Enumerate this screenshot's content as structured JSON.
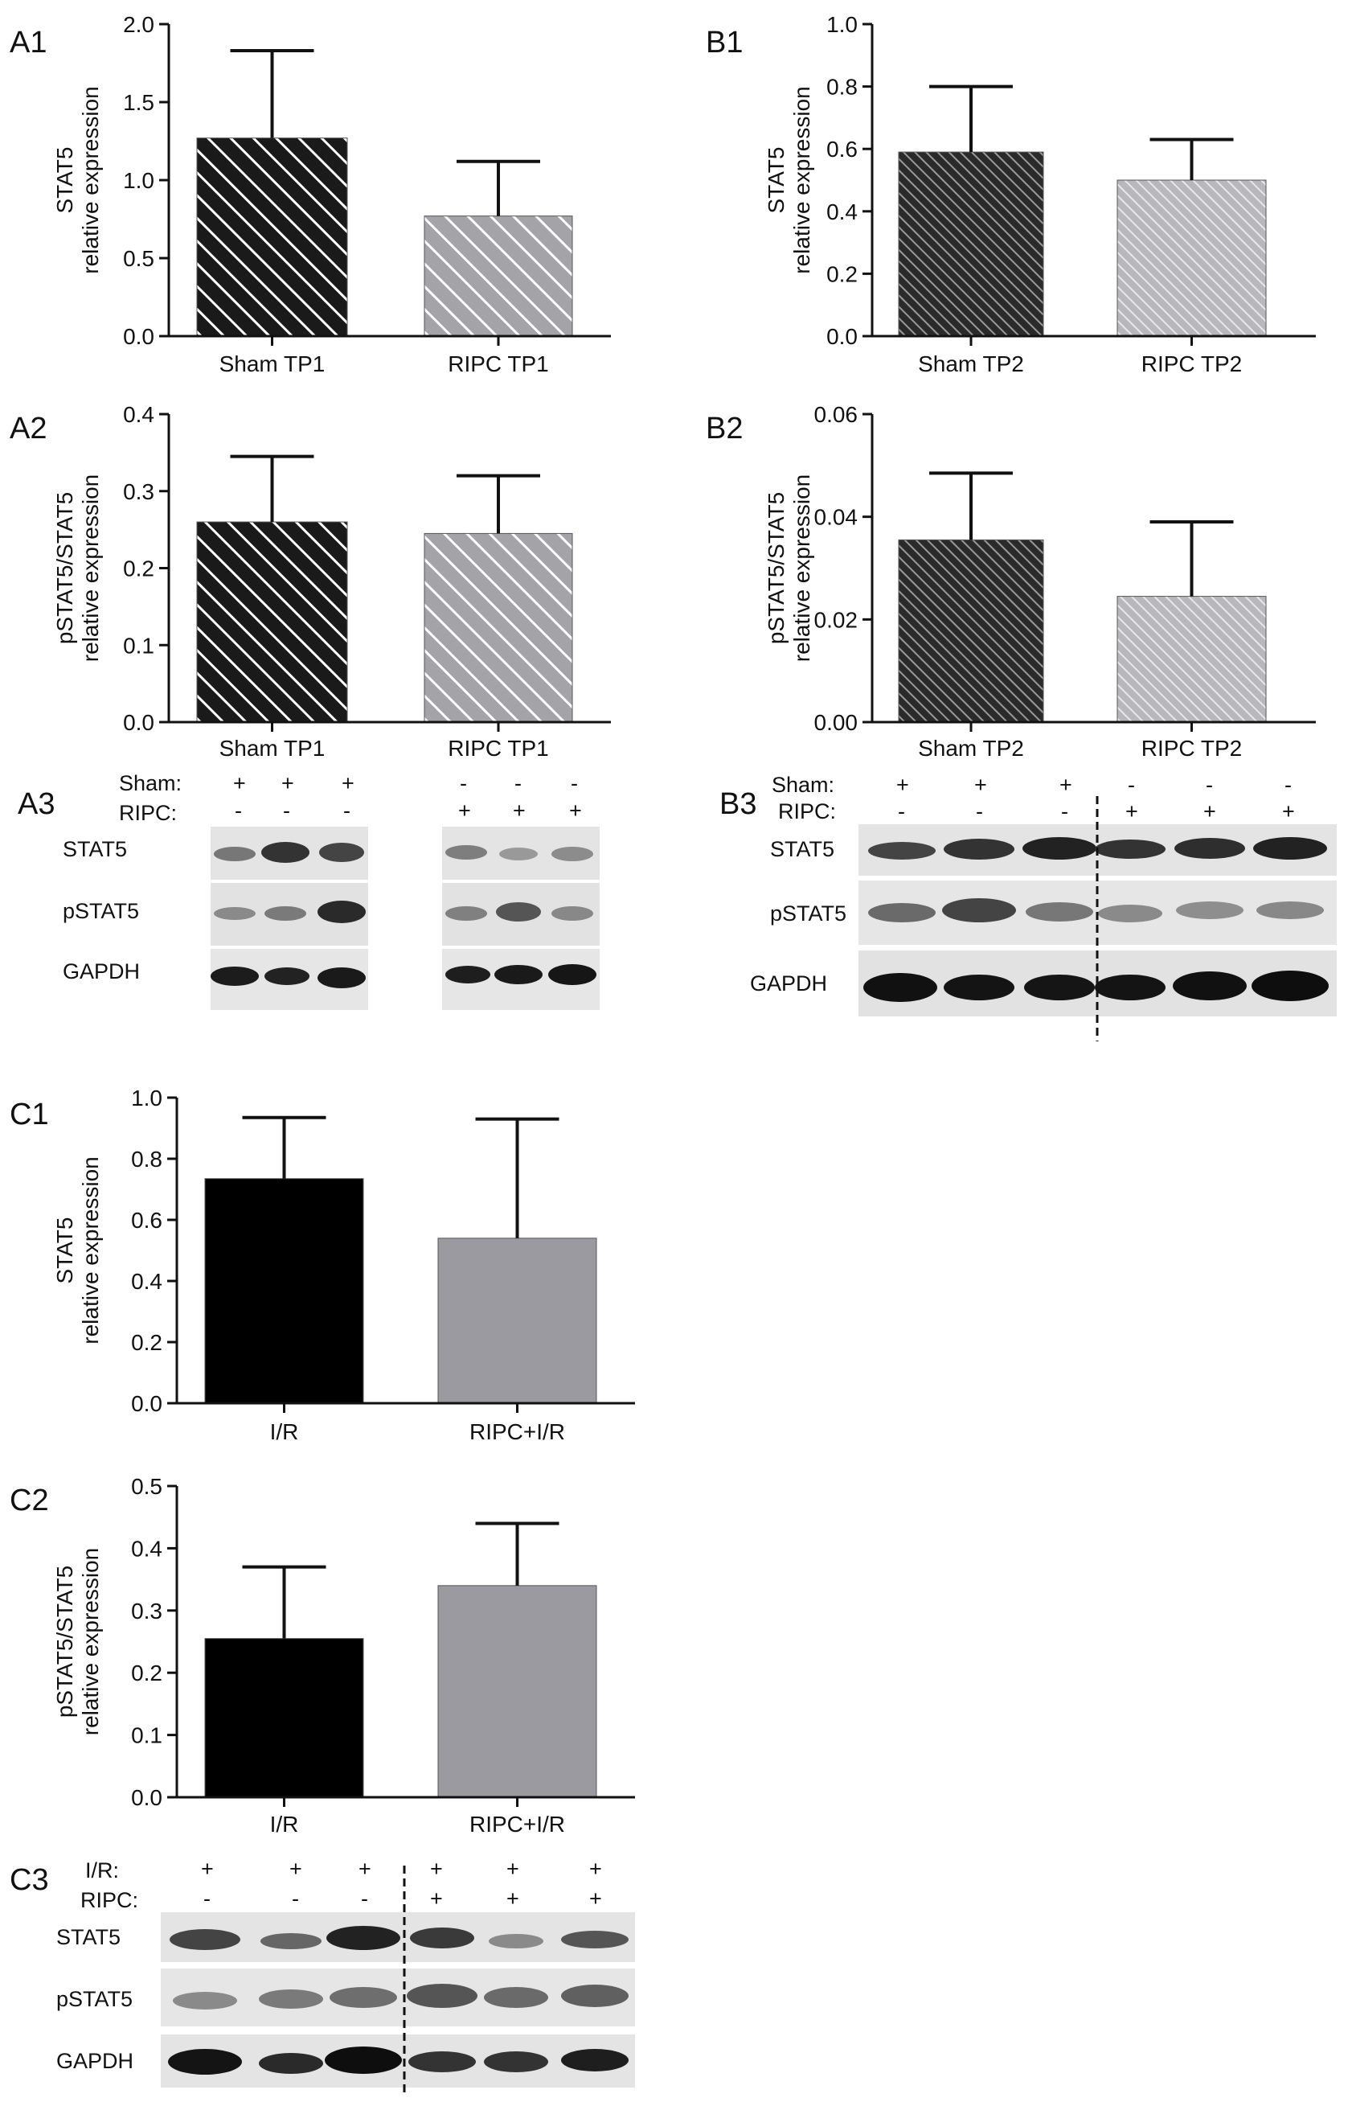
{
  "panel_labels": {
    "A1": "A1",
    "A2": "A2",
    "A3": "A3",
    "B1": "B1",
    "B2": "B2",
    "B3": "B3",
    "C1": "C1",
    "C2": "C2",
    "C3": "C3"
  },
  "colors": {
    "sham_bar": "#1a1a1a",
    "ripc_bar": "#a0a0a6",
    "ir_bar": "#000000",
    "ripc_ir_bar": "#9a9aa0",
    "axis": "#111111",
    "blot_background": "#e6e6e6",
    "blot_band": "#2a2a2a"
  },
  "chart_data": [
    {
      "id": "A1",
      "type": "bar",
      "categories": [
        "Sham TP1",
        "RIPC TP1"
      ],
      "values": [
        1.27,
        0.77
      ],
      "error": [
        0.56,
        0.35
      ],
      "ylabel_lines": [
        "STAT5",
        "relative expression"
      ],
      "ylim": [
        0,
        2.0
      ],
      "yticks": [
        "0.0",
        "0.5",
        "1.0",
        "1.5",
        "2.0"
      ],
      "tick_values": [
        0,
        0.5,
        1.0,
        1.5,
        2.0
      ],
      "patterns": [
        "hatch-dark",
        "hatch-light"
      ]
    },
    {
      "id": "B1",
      "type": "bar",
      "categories": [
        "Sham TP2",
        "RIPC TP2"
      ],
      "values": [
        0.59,
        0.5
      ],
      "error": [
        0.21,
        0.13
      ],
      "ylabel_lines": [
        "STAT5",
        "relative expression"
      ],
      "ylim": [
        0,
        1.0
      ],
      "yticks": [
        "0.0",
        "0.2",
        "0.4",
        "0.6",
        "0.8",
        "1.0"
      ],
      "tick_values": [
        0,
        0.2,
        0.4,
        0.6,
        0.8,
        1.0
      ],
      "patterns": [
        "hatch-fine-dark",
        "hatch-fine-light"
      ]
    },
    {
      "id": "A2",
      "type": "bar",
      "categories": [
        "Sham TP1",
        "RIPC TP1"
      ],
      "values": [
        0.26,
        0.245
      ],
      "error": [
        0.085,
        0.075
      ],
      "ylabel_lines": [
        "pSTAT5/STAT5",
        "relative expression"
      ],
      "ylim": [
        0,
        0.4
      ],
      "yticks": [
        "0.0",
        "0.1",
        "0.2",
        "0.3",
        "0.4"
      ],
      "tick_values": [
        0,
        0.1,
        0.2,
        0.3,
        0.4
      ],
      "patterns": [
        "hatch-dark",
        "hatch-light"
      ]
    },
    {
      "id": "B2",
      "type": "bar",
      "categories": [
        "Sham TP2",
        "RIPC TP2"
      ],
      "values": [
        0.0355,
        0.0245
      ],
      "error": [
        0.013,
        0.0145
      ],
      "ylabel_lines": [
        "pSTAT5/STAT5",
        "relative expression"
      ],
      "ylim": [
        0,
        0.06
      ],
      "yticks": [
        "0.00",
        "0.02",
        "0.04",
        "0.06"
      ],
      "tick_values": [
        0,
        0.02,
        0.04,
        0.06
      ],
      "patterns": [
        "hatch-fine-dark",
        "hatch-fine-light"
      ]
    },
    {
      "id": "C1",
      "type": "bar",
      "categories": [
        "I/R",
        "RIPC+I/R"
      ],
      "values": [
        0.735,
        0.54
      ],
      "error": [
        0.2,
        0.39
      ],
      "ylabel_lines": [
        "STAT5",
        "relative expression"
      ],
      "ylim": [
        0,
        1.0
      ],
      "yticks": [
        "0.0",
        "0.2",
        "0.4",
        "0.6",
        "0.8",
        "1.0"
      ],
      "tick_values": [
        0,
        0.2,
        0.4,
        0.6,
        0.8,
        1.0
      ],
      "patterns": [
        "solid-black",
        "solid-grey"
      ]
    },
    {
      "id": "C2",
      "type": "bar",
      "categories": [
        "I/R",
        "RIPC+I/R"
      ],
      "values": [
        0.255,
        0.34
      ],
      "error": [
        0.115,
        0.1
      ],
      "ylabel_lines": [
        "pSTAT5/STAT5",
        "relative expression"
      ],
      "ylim": [
        0,
        0.5
      ],
      "yticks": [
        "0.0",
        "0.1",
        "0.2",
        "0.3",
        "0.4",
        "0.5"
      ],
      "tick_values": [
        0,
        0.1,
        0.2,
        0.3,
        0.4,
        0.5
      ],
      "patterns": [
        "solid-black",
        "solid-grey"
      ]
    }
  ],
  "blots": {
    "A3": {
      "group_labels": [
        "Sham:",
        "RIPC:"
      ],
      "left_group": {
        "row1": [
          "+",
          "+",
          "+"
        ],
        "row2": [
          "-",
          "-",
          "-"
        ]
      },
      "right_group": {
        "row1": [
          "-",
          "-",
          "-"
        ],
        "row2": [
          "+",
          "+",
          "+"
        ]
      },
      "rows": [
        "STAT5",
        "pSTAT5",
        "GAPDH"
      ]
    },
    "B3": {
      "group_labels": [
        "Sham:",
        "RIPC:"
      ],
      "row1": [
        "+",
        "+",
        "+",
        "-",
        "-",
        "-"
      ],
      "row2": [
        "-",
        "-",
        "-",
        "+",
        "+",
        "+"
      ],
      "rows": [
        "STAT5",
        "pSTAT5",
        "GAPDH"
      ]
    },
    "C3": {
      "group_labels": [
        "I/R:",
        "RIPC:"
      ],
      "row1": [
        "+",
        "+",
        "+",
        "+",
        "+",
        "+"
      ],
      "row2": [
        "-",
        "-",
        "-",
        "+",
        "+",
        "+"
      ],
      "rows": [
        "STAT5",
        "pSTAT5",
        "GAPDH"
      ]
    }
  }
}
